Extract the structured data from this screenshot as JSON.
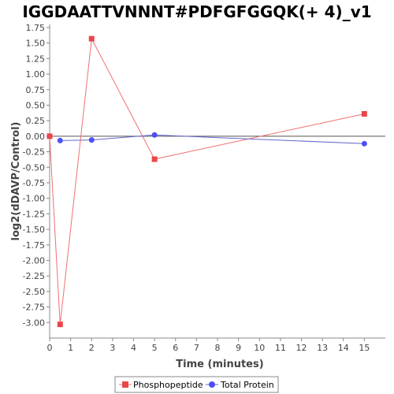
{
  "chart_data": {
    "type": "line",
    "title": "IGGDAATTVNNNT#PDFGFGGQK(+ 4)_v1",
    "xlabel": "Time (minutes)",
    "ylabel": "log2(dDAVP/Control)",
    "xlim": [
      0,
      16
    ],
    "ylim": [
      -3.25,
      1.8
    ],
    "x_ticks": [
      0,
      1,
      2,
      3,
      4,
      5,
      6,
      7,
      8,
      9,
      10,
      11,
      12,
      13,
      14,
      15
    ],
    "y_ticks": [
      1.75,
      1.5,
      1.25,
      1.0,
      0.75,
      0.5,
      0.25,
      0.0,
      -0.25,
      -0.5,
      -0.75,
      -1.0,
      -1.25,
      -1.5,
      -1.75,
      -2.0,
      -2.25,
      -2.5,
      -2.75,
      -3.0
    ],
    "grid": false,
    "legend_position": "bottom",
    "series": [
      {
        "name": "Phosphopeptide",
        "color": "#e8474a",
        "line_color": "#f07070",
        "marker": "square",
        "x": [
          0,
          0.5,
          2,
          5,
          15
        ],
        "y": [
          0.0,
          -3.03,
          1.57,
          -0.37,
          0.36
        ]
      },
      {
        "name": "Total Protein",
        "color": "#4f4ff5",
        "line_color": "#6666cc",
        "marker": "circle",
        "x": [
          0.5,
          2,
          5,
          15
        ],
        "y": [
          -0.07,
          -0.06,
          0.02,
          -0.12
        ]
      }
    ]
  }
}
